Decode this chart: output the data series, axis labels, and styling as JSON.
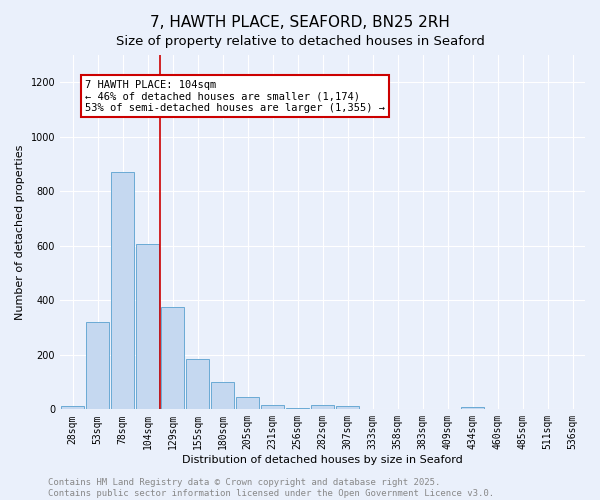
{
  "title": "7, HAWTH PLACE, SEAFORD, BN25 2RH",
  "subtitle": "Size of property relative to detached houses in Seaford",
  "xlabel": "Distribution of detached houses by size in Seaford",
  "ylabel": "Number of detached properties",
  "bar_labels": [
    "28sqm",
    "53sqm",
    "78sqm",
    "104sqm",
    "129sqm",
    "155sqm",
    "180sqm",
    "205sqm",
    "231sqm",
    "256sqm",
    "282sqm",
    "307sqm",
    "333sqm",
    "358sqm",
    "383sqm",
    "409sqm",
    "434sqm",
    "460sqm",
    "485sqm",
    "511sqm",
    "536sqm"
  ],
  "bar_values": [
    12,
    320,
    870,
    605,
    375,
    185,
    100,
    45,
    17,
    5,
    17,
    12,
    2,
    0,
    0,
    0,
    10,
    0,
    0,
    0,
    0
  ],
  "bar_color": "#c5d8f0",
  "bar_edge_color": "#6aaad4",
  "vline_color": "#cc0000",
  "annotation_text": "7 HAWTH PLACE: 104sqm\n← 46% of detached houses are smaller (1,174)\n53% of semi-detached houses are larger (1,355) →",
  "annotation_box_color": "#ffffff",
  "annotation_box_edge": "#cc0000",
  "ylim": [
    0,
    1300
  ],
  "yticks": [
    0,
    200,
    400,
    600,
    800,
    1000,
    1200
  ],
  "background_color": "#eaf0fb",
  "footer_line1": "Contains HM Land Registry data © Crown copyright and database right 2025.",
  "footer_line2": "Contains public sector information licensed under the Open Government Licence v3.0.",
  "title_fontsize": 11,
  "subtitle_fontsize": 9.5,
  "label_fontsize": 8,
  "tick_fontsize": 7,
  "footer_fontsize": 6.5,
  "annotation_fontsize": 7.5
}
